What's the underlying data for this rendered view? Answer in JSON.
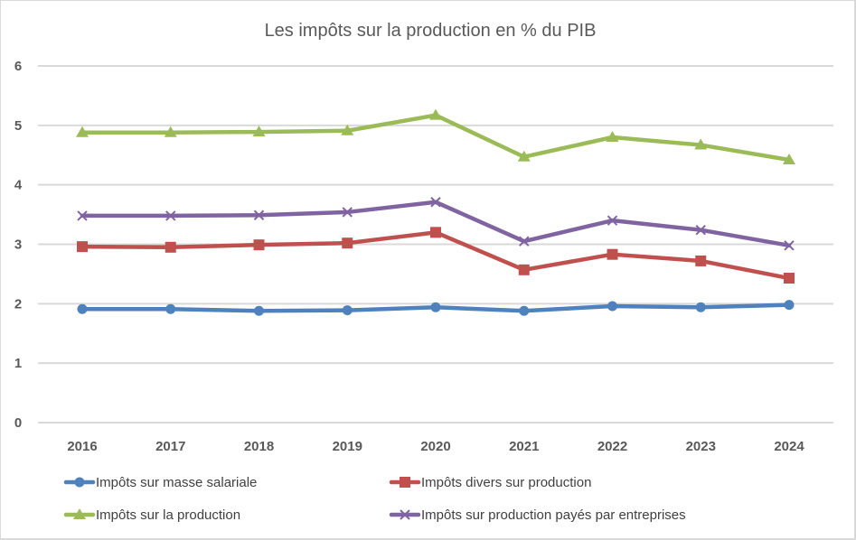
{
  "chart_data": {
    "type": "line",
    "title": "Les impôts sur la production en % du PIB",
    "xlabel": "",
    "ylabel": "",
    "categories": [
      "2016",
      "2017",
      "2018",
      "2019",
      "2020",
      "2021",
      "2022",
      "2023",
      "2024"
    ],
    "ylim": [
      0,
      6
    ],
    "yticks": [
      "0",
      "1",
      "2",
      "3",
      "4",
      "5",
      "6"
    ],
    "grid": true,
    "legend_position": "bottom",
    "series": [
      {
        "name": "Impôts sur masse salariale",
        "color": "#4f81bd",
        "marker": "circle",
        "values": [
          1.91,
          1.91,
          1.88,
          1.89,
          1.94,
          1.88,
          1.96,
          1.94,
          1.98
        ]
      },
      {
        "name": "Impôts divers sur production",
        "color": "#c0504d",
        "marker": "square",
        "values": [
          2.96,
          2.95,
          2.99,
          3.02,
          3.2,
          2.57,
          2.83,
          2.72,
          2.43
        ]
      },
      {
        "name": "Impôts sur la production",
        "color": "#9bbb59",
        "marker": "triangle",
        "values": [
          4.88,
          4.88,
          4.89,
          4.91,
          5.17,
          4.47,
          4.8,
          4.67,
          4.42
        ]
      },
      {
        "name": "Impôts sur production payés par entreprises",
        "color": "#8064a2",
        "marker": "x",
        "values": [
          3.48,
          3.48,
          3.49,
          3.54,
          3.71,
          3.05,
          3.4,
          3.24,
          2.98
        ]
      }
    ]
  }
}
